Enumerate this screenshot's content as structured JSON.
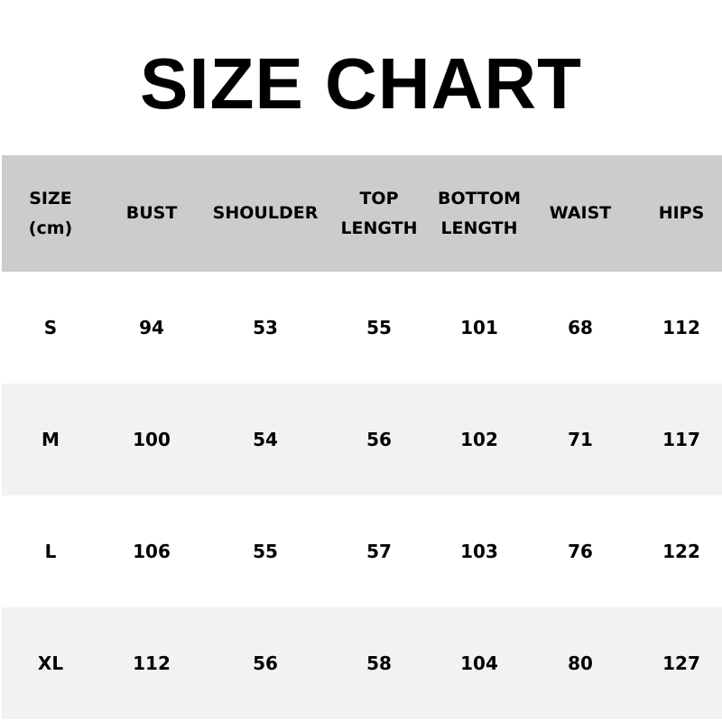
{
  "title": "SIZE CHART",
  "colors": {
    "header_bg": "#cccccc",
    "alt_row_bg": "#f2f2f2",
    "text": "#000000"
  },
  "columns": [
    {
      "lines": [
        "SIZE",
        "(cm)"
      ]
    },
    {
      "lines": [
        "BUST"
      ]
    },
    {
      "lines": [
        "SHOULDER"
      ]
    },
    {
      "lines": [
        "TOP",
        "LENGTH"
      ]
    },
    {
      "lines": [
        "BOTTOM",
        "LENGTH"
      ]
    },
    {
      "lines": [
        "WAIST"
      ]
    },
    {
      "lines": [
        "HIPS"
      ]
    }
  ],
  "rows": [
    [
      "S",
      "94",
      "53",
      "55",
      "101",
      "68",
      "112"
    ],
    [
      "M",
      "100",
      "54",
      "56",
      "102",
      "71",
      "117"
    ],
    [
      "L",
      "106",
      "55",
      "57",
      "103",
      "76",
      "122"
    ],
    [
      "XL",
      "112",
      "56",
      "58",
      "104",
      "80",
      "127"
    ]
  ]
}
